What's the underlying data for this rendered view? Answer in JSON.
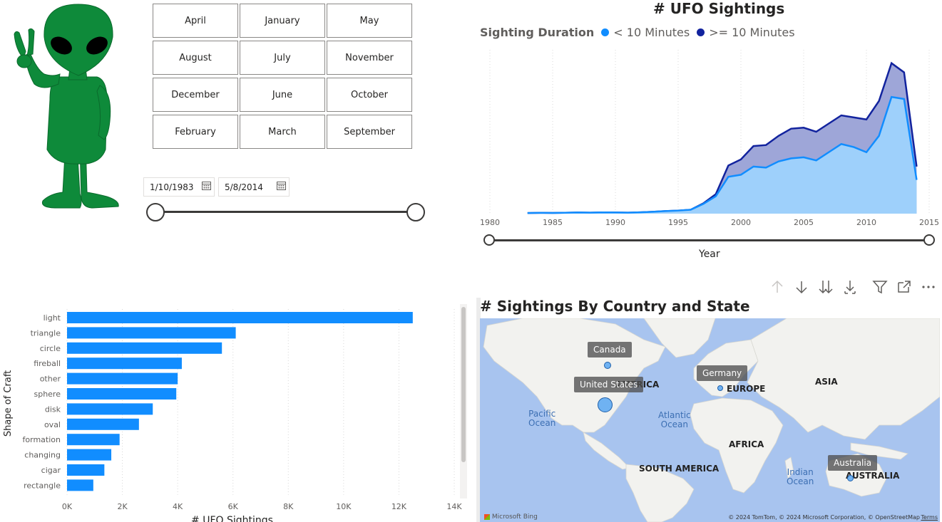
{
  "slicer": {
    "months": [
      "April",
      "January",
      "May",
      "August",
      "July",
      "November",
      "December",
      "June",
      "October",
      "February",
      "March",
      "September"
    ]
  },
  "date_range": {
    "start": "1/10/1983",
    "end": "5/8/2014"
  },
  "area_chart": {
    "title": "# UFO Sightings",
    "legend_title": "Sighting Duration",
    "series_labels": [
      "< 10 Minutes",
      ">= 10 Minutes"
    ],
    "xlabel": "Year",
    "colors": {
      "short": "#118DFF",
      "long": "#12239E",
      "short_fill": "#9ED0FB",
      "long_fill": "#9EA6D8"
    }
  },
  "bar_chart": {
    "ylabel": "Shape of Craft",
    "xlabel": "# UFO Sightings",
    "color": "#118DFF"
  },
  "map": {
    "title": "# Sightings By Country and State",
    "countries": [
      "Canada",
      "United States",
      "Germany",
      "Australia"
    ],
    "continents": [
      "AMERICA",
      "EUROPE",
      "ASIA",
      "AFRICA",
      "SOUTH AMERICA",
      "AUSTRALIA"
    ],
    "oceans": [
      "Pacific\nOcean",
      "Atlantic\nOcean",
      "Indian\nOcean"
    ],
    "brand": "Microsoft Bing",
    "copyright": "© 2024 TomTom, © 2024 Microsoft Corporation, © OpenStreetMap",
    "terms": "Terms"
  },
  "toolbar": {
    "icons": [
      "arrow-up-icon",
      "arrow-down-icon",
      "double-arrow-down-icon",
      "expand-hierarchy-icon",
      "filter-icon",
      "focus-mode-icon",
      "more-options-icon"
    ]
  },
  "chart_data": [
    {
      "type": "area",
      "title": "# UFO Sightings",
      "xlabel": "Year",
      "ylabel": "",
      "x": [
        1983,
        1984,
        1985,
        1986,
        1987,
        1988,
        1989,
        1990,
        1991,
        1992,
        1993,
        1994,
        1995,
        1996,
        1997,
        1998,
        1999,
        2000,
        2001,
        2002,
        2003,
        2004,
        2005,
        2006,
        2007,
        2008,
        2009,
        2010,
        2011,
        2012,
        2013,
        2014
      ],
      "xlim": [
        1980,
        2015
      ],
      "xticks": [
        "1980",
        "1985",
        "1990",
        "1995",
        "2000",
        "2005",
        "2010",
        "2015"
      ],
      "series": [
        {
          "name": "< 10 Minutes",
          "values": [
            60,
            80,
            70,
            90,
            110,
            100,
            120,
            110,
            100,
            130,
            180,
            250,
            300,
            380,
            950,
            1700,
            3600,
            3800,
            4600,
            4500,
            5100,
            5400,
            5500,
            5200,
            6000,
            6800,
            6500,
            6000,
            7600,
            11400,
            11200,
            3300
          ]
        },
        {
          "name": ">= 10 Minutes",
          "values": [
            60,
            80,
            70,
            90,
            110,
            100,
            120,
            110,
            100,
            130,
            180,
            250,
            300,
            380,
            1000,
            1900,
            4700,
            5300,
            6600,
            6700,
            7600,
            8300,
            8400,
            8000,
            8800,
            9600,
            9400,
            9200,
            11000,
            14700,
            13800,
            4600
          ]
        }
      ],
      "stacked": false
    },
    {
      "type": "bar",
      "orientation": "horizontal",
      "categories": [
        "light",
        "triangle",
        "circle",
        "fireball",
        "other",
        "sphere",
        "disk",
        "oval",
        "formation",
        "changing",
        "cigar",
        "rectangle"
      ],
      "values": [
        12500,
        6100,
        5600,
        4150,
        4000,
        3950,
        3100,
        2600,
        1900,
        1600,
        1350,
        950
      ],
      "xlabel": "# UFO Sightings",
      "ylabel": "Shape of Craft",
      "xlim": [
        0,
        14000
      ],
      "xticks": [
        "0K",
        "2K",
        "4K",
        "6K",
        "8K",
        "10K",
        "12K",
        "14K"
      ]
    }
  ]
}
